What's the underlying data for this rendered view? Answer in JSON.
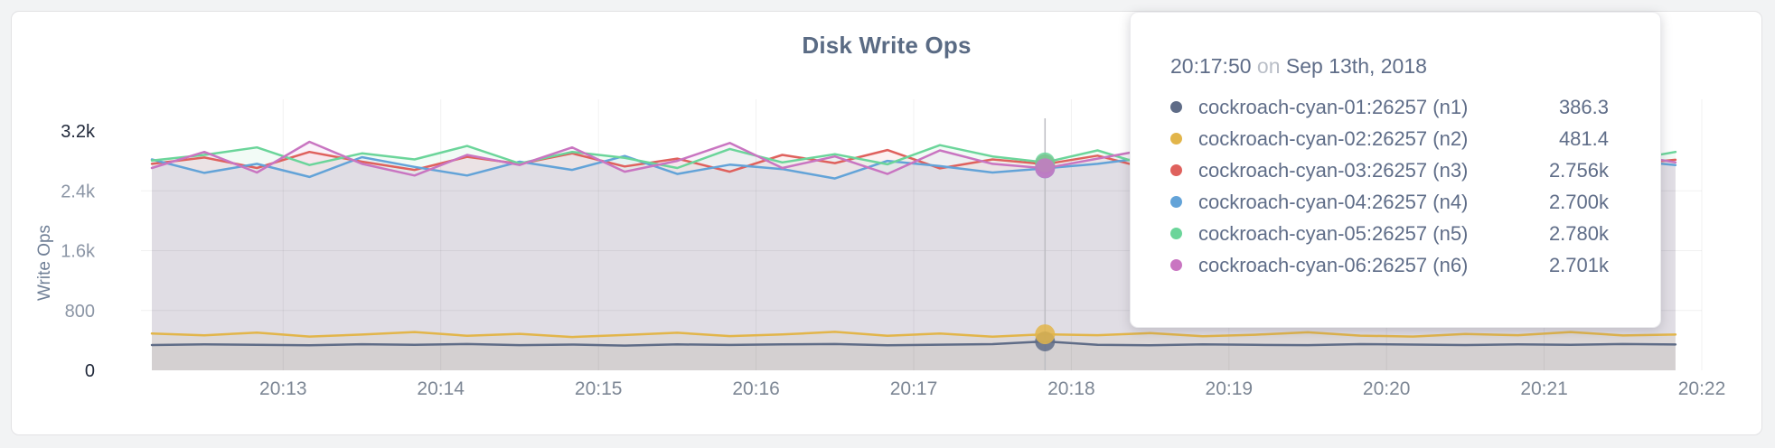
{
  "page": {
    "background": "#f2f3f4"
  },
  "card": {
    "background": "#ffffff",
    "border_color": "#e2e2e4"
  },
  "colors": {
    "title": "#5a6b84",
    "axis_tick": "#8b95a5",
    "axis_tick_strong": "#20283a",
    "x_tick": "#7d8795",
    "y_axis_title": "#6f7f96",
    "hover_line": "#bdbdc2",
    "tooltip_text": "#5f6d88",
    "tooltip_muted": "#b9bec7"
  },
  "chart_data": {
    "type": "line",
    "title": "Disk Write Ops",
    "ylabel": "Write Ops",
    "ylim": [
      0,
      3200
    ],
    "grid": true,
    "legend_position": "tooltip",
    "y_ticks": [
      {
        "label": "3.2k",
        "value": 3200,
        "strong": true
      },
      {
        "label": "2.4k",
        "value": 2400,
        "strong": false
      },
      {
        "label": "1.6k",
        "value": 1600,
        "strong": false
      },
      {
        "label": "800",
        "value": 800,
        "strong": false
      },
      {
        "label": "0",
        "value": 0,
        "strong": true
      }
    ],
    "y_gridline_values": [
      800,
      1600,
      2400
    ],
    "x_ticks": [
      {
        "label": "20:13",
        "offset_s": 50
      },
      {
        "label": "20:14",
        "offset_s": 110
      },
      {
        "label": "20:15",
        "offset_s": 170
      },
      {
        "label": "20:16",
        "offset_s": 230
      },
      {
        "label": "20:17",
        "offset_s": 290
      },
      {
        "label": "20:18",
        "offset_s": 350
      },
      {
        "label": "20:19",
        "offset_s": 410
      },
      {
        "label": "20:20",
        "offset_s": 470
      },
      {
        "label": "20:21",
        "offset_s": 530
      },
      {
        "label": "20:22",
        "offset_s": 590
      }
    ],
    "x_domain_seconds": 590,
    "point_interval_s": 20,
    "area_fill_opacity": 0.085,
    "series": [
      {
        "name": "cockroach-cyan-01:26257 (n1)",
        "node": "n1",
        "color": "#5f6c87",
        "values": [
          338,
          346,
          341,
          335,
          349,
          342,
          352,
          337,
          344,
          331,
          347,
          339,
          346,
          352,
          336,
          343,
          350,
          386.3,
          342,
          335,
          348,
          341,
          337,
          350,
          344,
          338,
          346,
          340,
          352,
          345
        ]
      },
      {
        "name": "cockroach-cyan-02:26257 (n2)",
        "node": "n2",
        "color": "#e2b54a",
        "values": [
          492,
          468,
          505,
          452,
          478,
          512,
          463,
          488,
          446,
          472,
          502,
          458,
          480,
          514,
          462,
          492,
          449,
          481.4,
          470,
          498,
          455,
          476,
          508,
          464,
          452,
          486,
          470,
          512,
          466,
          478
        ]
      },
      {
        "name": "cockroach-cyan-03:26257 (n3)",
        "node": "n3",
        "color": "#df615d",
        "values": [
          2760,
          2845,
          2705,
          2920,
          2790,
          2680,
          2855,
          2760,
          2900,
          2725,
          2830,
          2655,
          2880,
          2770,
          2945,
          2700,
          2820,
          2756,
          2870,
          2690,
          2800,
          2740,
          2910,
          2670,
          2850,
          2780,
          2645,
          2900,
          2750,
          2815
        ]
      },
      {
        "name": "cockroach-cyan-04:26257 (n4)",
        "node": "n4",
        "color": "#63a3d8",
        "values": [
          2820,
          2640,
          2760,
          2585,
          2850,
          2720,
          2605,
          2790,
          2680,
          2865,
          2625,
          2750,
          2690,
          2565,
          2800,
          2730,
          2645,
          2700,
          2760,
          2850,
          2615,
          2740,
          2680,
          2820,
          2595,
          2760,
          2705,
          2635,
          2810,
          2745
        ]
      },
      {
        "name": "cockroach-cyan-05:26257 (n5)",
        "node": "n5",
        "color": "#6bd59a",
        "values": [
          2805,
          2880,
          2980,
          2745,
          2900,
          2820,
          3000,
          2765,
          2920,
          2840,
          2705,
          2960,
          2780,
          2890,
          2755,
          3010,
          2860,
          2780,
          2940,
          2725,
          2880,
          2800,
          2960,
          2745,
          2900,
          2980,
          2705,
          2860,
          2795,
          2920
        ]
      },
      {
        "name": "cockroach-cyan-06:26257 (n6)",
        "node": "n6",
        "color": "#c975c1",
        "values": [
          2705,
          2920,
          2645,
          3055,
          2760,
          2605,
          2880,
          2745,
          2980,
          2655,
          2800,
          3040,
          2705,
          2860,
          2625,
          2940,
          2760,
          2701,
          2830,
          2960,
          2685,
          2790,
          2870,
          2615,
          2950,
          2725,
          2840,
          2665,
          2900,
          2780
        ]
      }
    ],
    "hover": {
      "index": 17,
      "time": "20:17:50",
      "date": "Sep 13th, 2018"
    }
  },
  "tooltip": {
    "time": "20:17:50",
    "conjunction": "on",
    "date": "Sep 13th, 2018",
    "rows": [
      {
        "name": "cockroach-cyan-01:26257 (n1)",
        "value": "386.3",
        "color": "#5f6c87"
      },
      {
        "name": "cockroach-cyan-02:26257 (n2)",
        "value": "481.4",
        "color": "#e2b54a"
      },
      {
        "name": "cockroach-cyan-03:26257 (n3)",
        "value": "2.756k",
        "color": "#df615d"
      },
      {
        "name": "cockroach-cyan-04:26257 (n4)",
        "value": "2.700k",
        "color": "#63a3d8"
      },
      {
        "name": "cockroach-cyan-05:26257 (n5)",
        "value": "2.780k",
        "color": "#6bd59a"
      },
      {
        "name": "cockroach-cyan-06:26257 (n6)",
        "value": "2.701k",
        "color": "#c975c1"
      }
    ]
  }
}
